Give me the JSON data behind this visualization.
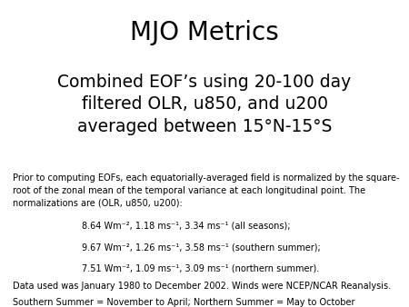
{
  "title": "MJO Metrics",
  "subtitle": "Combined EOF’s using 20-100 day\nfiltered OLR, u850, and u200\naveraged between 15°N-15°S",
  "body_text": "Prior to computing EOFs, each equatorially-averaged field is normalized by the square-\nroot of the zonal mean of the temporal variance at each longitudinal point. The\nnormalizations are (OLR, u850, u200):",
  "bullet1": "8.64 Wm⁻², 1.18 ms⁻¹, 3.34 ms⁻¹ (all seasons);",
  "bullet2": "9.67 Wm⁻², 1.26 ms⁻¹, 3.58 ms⁻¹ (southern summer);",
  "bullet3": "7.51 Wm⁻², 1.09 ms⁻¹, 3.09 ms⁻¹ (northern summer).",
  "footer1": "Data used was January 1980 to December 2002. Winds were NCEP/NCAR Reanalysis.",
  "footer2": "Southern Summer = November to April; Northern Summer = May to October",
  "bg_color": "#ffffff",
  "text_color": "#000000",
  "title_fontsize": 20,
  "subtitle_fontsize": 13.5,
  "body_fontsize": 7.0,
  "bullet_fontsize": 7.0,
  "footer_fontsize": 7.0
}
